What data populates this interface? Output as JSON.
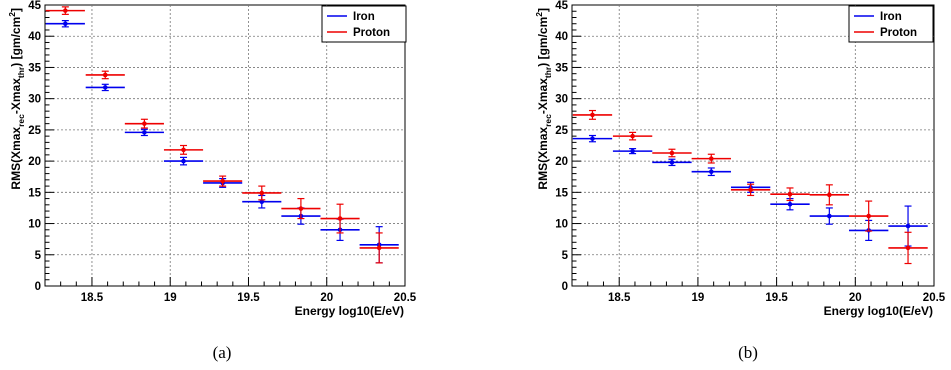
{
  "chart_data": [
    {
      "type": "scatter",
      "caption": "(a)",
      "xlabel": "Energy  log10(E/eV)",
      "ylabel": "RMS(Xmax_rec-Xmax_thr)  [gm/cm^2]",
      "ylabel_parts": {
        "main": "RMS(Xmax",
        "sub1": "rec",
        "mid": "-Xmax",
        "sub2": "thr",
        "tail": ")  [gm/cm",
        "sup": "2",
        "end": "]"
      },
      "xlim": [
        18.2,
        20.5
      ],
      "ylim": [
        0,
        45
      ],
      "x_ticks": [
        "18.5",
        "19",
        "19.5",
        "20",
        "20.5"
      ],
      "y_ticks": [
        "0",
        "5",
        "10",
        "15",
        "20",
        "25",
        "30",
        "35",
        "40",
        "45"
      ],
      "grid": true,
      "legend": "top-right",
      "series": [
        {
          "name": "Iron",
          "color": "#0000ee",
          "x": [
            18.33,
            18.585,
            18.835,
            19.085,
            19.335,
            19.585,
            19.835,
            20.085,
            20.335
          ],
          "xerr": [
            0.125,
            0.125,
            0.125,
            0.125,
            0.125,
            0.125,
            0.125,
            0.125,
            0.125
          ],
          "y": [
            42.0,
            31.8,
            24.6,
            20.0,
            16.5,
            13.5,
            11.2,
            9.0,
            6.6
          ],
          "yerr": [
            0.5,
            0.5,
            0.5,
            0.6,
            0.7,
            1.0,
            1.3,
            1.7,
            2.9
          ]
        },
        {
          "name": "Proton",
          "color": "#ee0000",
          "x": [
            18.33,
            18.585,
            18.835,
            19.085,
            19.335,
            19.585,
            19.835,
            20.085,
            20.335
          ],
          "xerr": [
            0.125,
            0.125,
            0.125,
            0.125,
            0.125,
            0.125,
            0.125,
            0.125,
            0.125
          ],
          "y": [
            44.1,
            33.8,
            26.0,
            21.8,
            16.8,
            14.9,
            12.4,
            10.8,
            6.1
          ],
          "yerr": [
            0.6,
            0.6,
            0.7,
            0.7,
            0.8,
            1.1,
            1.6,
            2.3,
            2.4
          ]
        }
      ]
    },
    {
      "type": "scatter",
      "caption": "(b)",
      "xlabel": "Energy  log10(E/eV)",
      "ylabel": "RMS(Xmax_rec-Xmax_thr)  [gm/cm^2]",
      "ylabel_parts": {
        "main": "RMS(Xmax",
        "sub1": "rec",
        "mid": "-Xmax",
        "sub2": "thr",
        "tail": ")  [gm/cm",
        "sup": "2",
        "end": "]"
      },
      "xlim": [
        18.2,
        20.5
      ],
      "ylim": [
        0,
        45
      ],
      "x_ticks": [
        "18.5",
        "19",
        "19.5",
        "20",
        "20.5"
      ],
      "y_ticks": [
        "0",
        "5",
        "10",
        "15",
        "20",
        "25",
        "30",
        "35",
        "40",
        "45"
      ],
      "grid": true,
      "legend": "top-right",
      "series": [
        {
          "name": "Iron",
          "color": "#0000ee",
          "x": [
            18.33,
            18.585,
            18.835,
            19.085,
            19.335,
            19.585,
            19.835,
            20.085,
            20.335
          ],
          "xerr": [
            0.125,
            0.125,
            0.125,
            0.125,
            0.125,
            0.125,
            0.125,
            0.125,
            0.125
          ],
          "y": [
            23.6,
            21.6,
            19.8,
            18.3,
            15.8,
            13.1,
            11.2,
            8.9,
            9.6
          ],
          "yerr": [
            0.5,
            0.4,
            0.5,
            0.6,
            0.8,
            0.9,
            1.3,
            1.6,
            3.2
          ]
        },
        {
          "name": "Proton",
          "color": "#ee0000",
          "x": [
            18.33,
            18.585,
            18.835,
            19.085,
            19.335,
            19.585,
            19.835,
            20.085,
            20.335
          ],
          "xerr": [
            0.125,
            0.125,
            0.125,
            0.125,
            0.125,
            0.125,
            0.125,
            0.125,
            0.125
          ],
          "y": [
            27.4,
            24.0,
            21.3,
            20.4,
            15.4,
            14.7,
            14.6,
            11.2,
            6.1
          ],
          "yerr": [
            0.7,
            0.6,
            0.6,
            0.7,
            0.9,
            1.0,
            1.6,
            2.4,
            2.5
          ]
        }
      ]
    }
  ]
}
